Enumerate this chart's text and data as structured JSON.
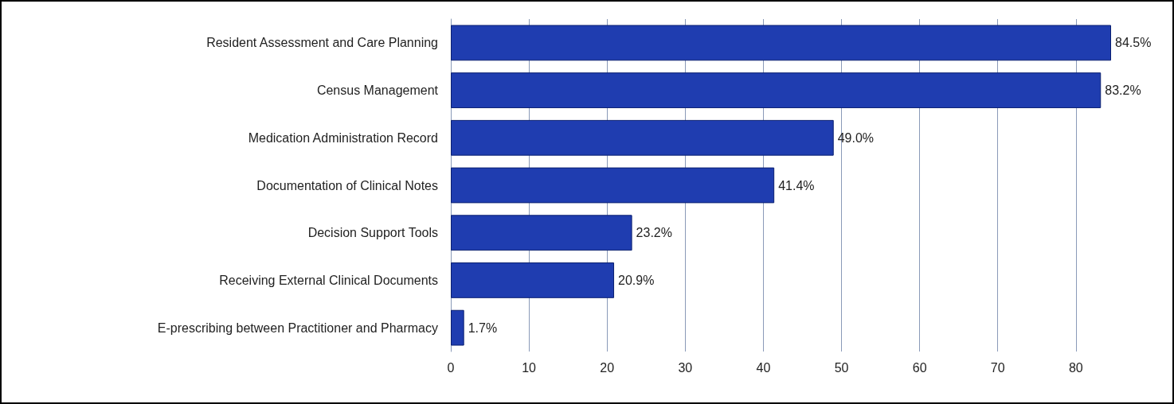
{
  "chart_data": {
    "type": "bar",
    "orientation": "horizontal",
    "categories": [
      "Resident Assessment and Care Planning",
      "Census Management",
      "Medication Administration Record",
      "Documentation of Clinical Notes",
      "Decision Support Tools",
      "Receiving External Clinical Documents",
      "E-prescribing between Practitioner and Pharmacy"
    ],
    "values": [
      84.5,
      83.2,
      49.0,
      41.4,
      23.2,
      20.9,
      1.7
    ],
    "value_labels": [
      "84.5%",
      "83.2%",
      "49.0%",
      "41.4%",
      "23.2%",
      "20.9%",
      "1.7%"
    ],
    "color": "#1f3db0",
    "xlim": [
      0,
      84.5
    ],
    "xticks": [
      0,
      10,
      20,
      30,
      40,
      50,
      60,
      70,
      80
    ],
    "grid": "x"
  }
}
